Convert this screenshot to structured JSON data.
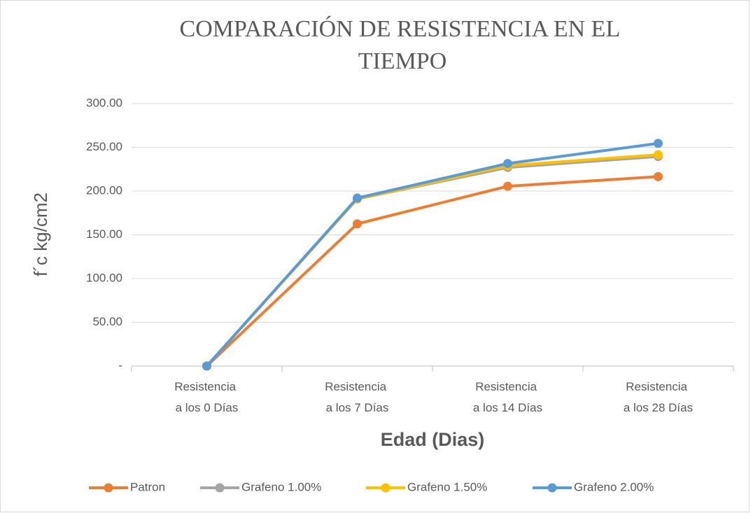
{
  "chart_data": {
    "type": "line",
    "title": "COMPARACIÓN DE RESISTENCIA EN EL TIEMPO",
    "x_label": "Edad (Dias)",
    "y_label": "f´c kg/cm2",
    "categories": [
      "Resistencia a los 0 Días",
      "Resistencia a los 7 Días",
      "Resistencia a los 14 Días",
      "Resistencia a los 28 Días"
    ],
    "series": [
      {
        "name": "Patron",
        "color": "#ED7D31",
        "values": [
          0,
          162.5,
          205.5,
          216.5
        ]
      },
      {
        "name": "Grafeno 1.00%",
        "color": "#A5A5A5",
        "values": [
          0,
          191,
          227,
          239.5
        ]
      },
      {
        "name": "Grafeno 1.50%",
        "color": "#FFC000",
        "values": [
          0,
          191,
          229,
          241.5
        ]
      },
      {
        "name": "Grafeno 2.00%",
        "color": "#5B9BD5",
        "values": [
          0,
          192,
          231.5,
          254.5
        ]
      }
    ],
    "ylim": [
      0,
      300
    ],
    "yticks": [
      {
        "value": 0,
        "label": "-"
      },
      {
        "value": 50,
        "label": "50.00"
      },
      {
        "value": 100,
        "label": "100.00"
      },
      {
        "value": 150,
        "label": "150.00"
      },
      {
        "value": 200,
        "label": "200.00"
      },
      {
        "value": 250,
        "label": "250.00"
      },
      {
        "value": 300,
        "label": "300.00"
      }
    ],
    "grid": true,
    "legend": "bottom"
  }
}
